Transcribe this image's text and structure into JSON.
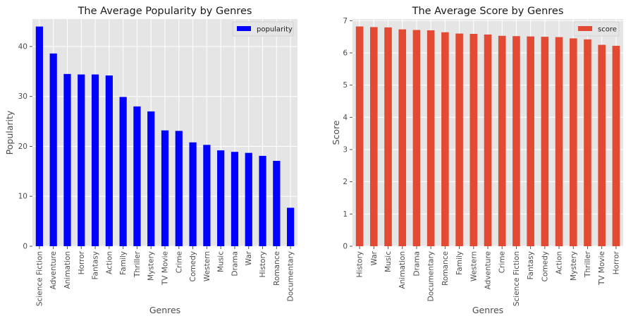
{
  "chart_data": [
    {
      "type": "bar",
      "title": "The Average Popularity by Genres",
      "xlabel": "Genres",
      "ylabel": "Popularity",
      "ylim": [
        0,
        45.5
      ],
      "yticks": [
        0,
        10,
        20,
        30,
        40
      ],
      "grid": true,
      "legend_position": "top-right",
      "color": "#0000ff",
      "categories": [
        "Science Fiction",
        "Adventure",
        "Animation",
        "Horror",
        "Fantasy",
        "Action",
        "Family",
        "Thriller",
        "Mystery",
        "TV Movie",
        "Crime",
        "Comedy",
        "Western",
        "Music",
        "Drama",
        "War",
        "History",
        "Romance",
        "Documentary"
      ],
      "series": [
        {
          "name": "popularity",
          "values": [
            44.0,
            38.6,
            34.5,
            34.4,
            34.4,
            34.2,
            29.9,
            28.0,
            27.0,
            23.2,
            23.1,
            20.8,
            20.3,
            19.2,
            18.9,
            18.7,
            18.1,
            17.1,
            7.7
          ]
        }
      ]
    },
    {
      "type": "bar",
      "title": "The Average Score by Genres",
      "xlabel": "Genres",
      "ylabel": "Score",
      "ylim": [
        0,
        7.05
      ],
      "yticks": [
        0,
        1,
        2,
        3,
        4,
        5,
        6,
        7
      ],
      "grid": true,
      "legend_position": "top-right",
      "color": "#e24a33",
      "categories": [
        "History",
        "War",
        "Music",
        "Animation",
        "Drama",
        "Documentary",
        "Romance",
        "Family",
        "Western",
        "Adventure",
        "Crime",
        "Science Fiction",
        "Fantasy",
        "Comedy",
        "Action",
        "Mystery",
        "Thriller",
        "TV Movie",
        "Horror"
      ],
      "series": [
        {
          "name": "score",
          "values": [
            6.82,
            6.8,
            6.79,
            6.73,
            6.71,
            6.7,
            6.64,
            6.6,
            6.59,
            6.57,
            6.53,
            6.52,
            6.51,
            6.5,
            6.49,
            6.45,
            6.42,
            6.25,
            6.22
          ]
        }
      ]
    }
  ]
}
